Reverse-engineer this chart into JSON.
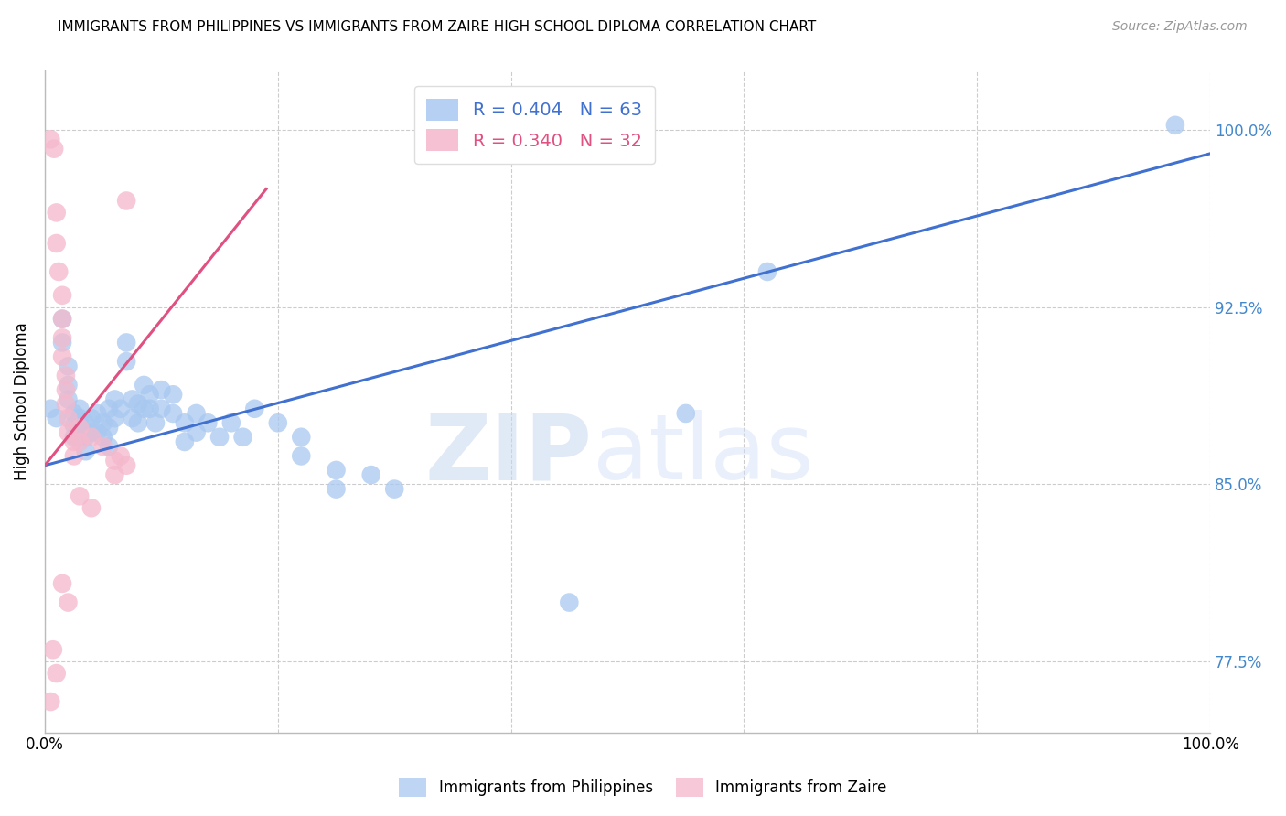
{
  "title": "IMMIGRANTS FROM PHILIPPINES VS IMMIGRANTS FROM ZAIRE HIGH SCHOOL DIPLOMA CORRELATION CHART",
  "source": "Source: ZipAtlas.com",
  "ylabel": "High School Diploma",
  "ytick_labels": [
    "77.5%",
    "85.0%",
    "92.5%",
    "100.0%"
  ],
  "ytick_values": [
    0.775,
    0.85,
    0.925,
    1.0
  ],
  "xlim": [
    0.0,
    1.0
  ],
  "ylim": [
    0.745,
    1.025
  ],
  "legend_blue_r": "R = 0.404",
  "legend_blue_n": "N = 63",
  "legend_pink_r": "R = 0.340",
  "legend_pink_n": "N = 32",
  "blue_color": "#a8c8f0",
  "pink_color": "#f5b8cc",
  "blue_line_color": "#4070d0",
  "pink_line_color": "#e05080",
  "blue_scatter": [
    [
      0.005,
      0.882
    ],
    [
      0.01,
      0.878
    ],
    [
      0.015,
      0.92
    ],
    [
      0.015,
      0.91
    ],
    [
      0.02,
      0.9
    ],
    [
      0.02,
      0.892
    ],
    [
      0.02,
      0.886
    ],
    [
      0.025,
      0.88
    ],
    [
      0.025,
      0.875
    ],
    [
      0.025,
      0.87
    ],
    [
      0.03,
      0.882
    ],
    [
      0.03,
      0.878
    ],
    [
      0.03,
      0.872
    ],
    [
      0.035,
      0.876
    ],
    [
      0.035,
      0.87
    ],
    [
      0.035,
      0.864
    ],
    [
      0.04,
      0.878
    ],
    [
      0.04,
      0.872
    ],
    [
      0.045,
      0.88
    ],
    [
      0.045,
      0.872
    ],
    [
      0.05,
      0.876
    ],
    [
      0.05,
      0.87
    ],
    [
      0.055,
      0.882
    ],
    [
      0.055,
      0.874
    ],
    [
      0.055,
      0.866
    ],
    [
      0.06,
      0.886
    ],
    [
      0.06,
      0.878
    ],
    [
      0.065,
      0.882
    ],
    [
      0.07,
      0.91
    ],
    [
      0.07,
      0.902
    ],
    [
      0.075,
      0.886
    ],
    [
      0.075,
      0.878
    ],
    [
      0.08,
      0.884
    ],
    [
      0.08,
      0.876
    ],
    [
      0.085,
      0.892
    ],
    [
      0.085,
      0.882
    ],
    [
      0.09,
      0.888
    ],
    [
      0.09,
      0.882
    ],
    [
      0.095,
      0.876
    ],
    [
      0.1,
      0.89
    ],
    [
      0.1,
      0.882
    ],
    [
      0.11,
      0.888
    ],
    [
      0.11,
      0.88
    ],
    [
      0.12,
      0.876
    ],
    [
      0.12,
      0.868
    ],
    [
      0.13,
      0.88
    ],
    [
      0.13,
      0.872
    ],
    [
      0.14,
      0.876
    ],
    [
      0.15,
      0.87
    ],
    [
      0.16,
      0.876
    ],
    [
      0.17,
      0.87
    ],
    [
      0.18,
      0.882
    ],
    [
      0.2,
      0.876
    ],
    [
      0.22,
      0.87
    ],
    [
      0.22,
      0.862
    ],
    [
      0.25,
      0.856
    ],
    [
      0.25,
      0.848
    ],
    [
      0.28,
      0.854
    ],
    [
      0.3,
      0.848
    ],
    [
      0.45,
      0.8
    ],
    [
      0.55,
      0.88
    ],
    [
      0.62,
      0.94
    ],
    [
      0.97,
      1.002
    ]
  ],
  "pink_scatter": [
    [
      0.005,
      0.996
    ],
    [
      0.008,
      0.992
    ],
    [
      0.01,
      0.965
    ],
    [
      0.01,
      0.952
    ],
    [
      0.012,
      0.94
    ],
    [
      0.015,
      0.93
    ],
    [
      0.015,
      0.92
    ],
    [
      0.015,
      0.912
    ],
    [
      0.015,
      0.904
    ],
    [
      0.018,
      0.896
    ],
    [
      0.018,
      0.89
    ],
    [
      0.018,
      0.884
    ],
    [
      0.02,
      0.878
    ],
    [
      0.02,
      0.872
    ],
    [
      0.025,
      0.868
    ],
    [
      0.025,
      0.862
    ],
    [
      0.03,
      0.874
    ],
    [
      0.03,
      0.868
    ],
    [
      0.04,
      0.87
    ],
    [
      0.05,
      0.866
    ],
    [
      0.06,
      0.86
    ],
    [
      0.06,
      0.854
    ],
    [
      0.065,
      0.862
    ],
    [
      0.07,
      0.858
    ],
    [
      0.03,
      0.845
    ],
    [
      0.04,
      0.84
    ],
    [
      0.015,
      0.808
    ],
    [
      0.02,
      0.8
    ],
    [
      0.007,
      0.78
    ],
    [
      0.01,
      0.77
    ],
    [
      0.005,
      0.758
    ],
    [
      0.07,
      0.97
    ]
  ],
  "blue_trendline_x": [
    0.0,
    1.0
  ],
  "blue_trendline_y": [
    0.858,
    0.99
  ],
  "pink_trendline_x": [
    0.0,
    0.19
  ],
  "pink_trendline_y": [
    0.858,
    0.975
  ],
  "watermark_zip": "ZIP",
  "watermark_atlas": "atlas",
  "background_color": "#ffffff",
  "grid_color": "#cccccc"
}
